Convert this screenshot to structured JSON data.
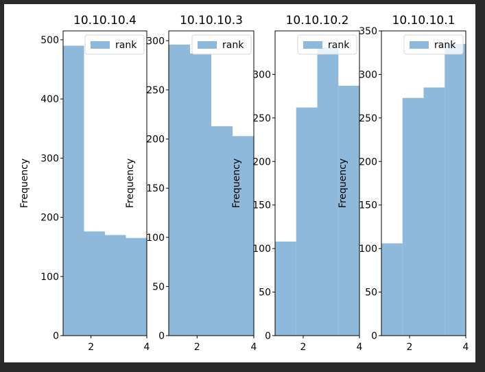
{
  "chart_data": [
    {
      "type": "bar",
      "title": "10.10.10.4",
      "xlabel": "",
      "ylabel": "Frequency",
      "xlim": [
        1,
        4
      ],
      "ylim": [
        0,
        515
      ],
      "xticks": [
        "2",
        "4"
      ],
      "yticks": [
        "0",
        "100",
        "200",
        "300",
        "400",
        "500"
      ],
      "bin_edges": [
        1.0,
        1.75,
        2.5,
        3.25,
        4.0
      ],
      "series": [
        {
          "name": "rank",
          "values": [
            490,
            176,
            170,
            165
          ]
        }
      ],
      "legend": "top-right",
      "color": "#8fb9da"
    },
    {
      "type": "bar",
      "title": "10.10.10.3",
      "xlabel": "",
      "ylabel": "Frequency",
      "xlim": [
        1,
        4
      ],
      "ylim": [
        0,
        310
      ],
      "xticks": [
        "2",
        "4"
      ],
      "yticks": [
        "0",
        "50",
        "100",
        "150",
        "200",
        "250",
        "300"
      ],
      "bin_edges": [
        1.0,
        1.75,
        2.5,
        3.25,
        4.0
      ],
      "series": [
        {
          "name": "rank",
          "values": [
            296,
            287,
            213,
            203
          ]
        }
      ],
      "legend": "top-right",
      "color": "#8fb9da"
    },
    {
      "type": "bar",
      "title": "10.10.10.2",
      "xlabel": "",
      "ylabel": "Frequency",
      "xlim": [
        1,
        4
      ],
      "ylim": [
        0,
        350
      ],
      "xticks": [
        "2",
        "4"
      ],
      "yticks": [
        "0",
        "50",
        "100",
        "150",
        "200",
        "250",
        "300"
      ],
      "bin_edges": [
        1.0,
        1.75,
        2.5,
        3.25,
        4.0
      ],
      "series": [
        {
          "name": "rank",
          "values": [
            108,
            262,
            331,
            287
          ]
        }
      ],
      "legend": "top-right",
      "color": "#8fb9da"
    },
    {
      "type": "bar",
      "title": "10.10.10.1",
      "xlabel": "",
      "ylabel": "Frequency",
      "xlim": [
        1,
        4
      ],
      "ylim": [
        0,
        350
      ],
      "xticks": [
        "2",
        "4"
      ],
      "yticks": [
        "0",
        "50",
        "100",
        "150",
        "200",
        "250",
        "300",
        "350"
      ],
      "bin_edges": [
        1.0,
        1.75,
        2.5,
        3.25,
        4.0
      ],
      "series": [
        {
          "name": "rank",
          "values": [
            106,
            273,
            285,
            335
          ]
        }
      ],
      "legend": "top-right",
      "color": "#8fb9da"
    }
  ]
}
